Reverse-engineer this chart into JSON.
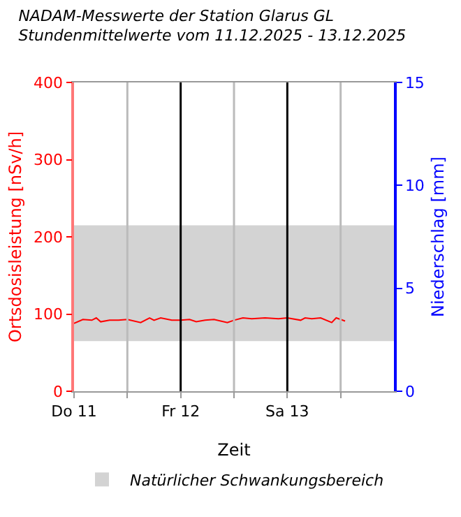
{
  "chart_data": {
    "type": "line",
    "title": "NADAM-Messwerte der Station Glarus GL",
    "subtitle": "Stundenmittelwerte vom 11.12.2025 - 13.12.2025",
    "xlabel": "Zeit",
    "ylabel": "Ortsdosisleistung [nSv/h]",
    "y2label": "Niederschlag [mm]",
    "xlim": [
      "2025-12-11T00:00",
      "2025-12-14T00:00"
    ],
    "xticks": [
      {
        "value": "2025-12-11T00:00",
        "label": "Do 11"
      },
      {
        "value": "2025-12-11T12:00",
        "label": null
      },
      {
        "value": "2025-12-12T00:00",
        "label": "Fr 12"
      },
      {
        "value": "2025-12-12T12:00",
        "label": null
      },
      {
        "value": "2025-12-13T00:00",
        "label": "Sa 13"
      },
      {
        "value": "2025-12-13T12:00",
        "label": null
      }
    ],
    "ylim": [
      0,
      400
    ],
    "yticks": [
      0,
      100,
      200,
      300,
      400
    ],
    "y2lim": [
      0,
      15
    ],
    "y2ticks": [
      0,
      5,
      10,
      15
    ],
    "series": [
      {
        "color": "#ff0000",
        "x": [
          "2025-12-11T00:00",
          "2025-12-11T02:00",
          "2025-12-11T04:00",
          "2025-12-11T05:00",
          "2025-12-11T06:00",
          "2025-12-11T08:00",
          "2025-12-11T10:00",
          "2025-12-11T12:00",
          "2025-12-11T15:00",
          "2025-12-11T17:00",
          "2025-12-11T18:00",
          "2025-12-11T19:30",
          "2025-12-11T22:00",
          "2025-12-12T00:00",
          "2025-12-12T02:00",
          "2025-12-12T03:30",
          "2025-12-12T05:30",
          "2025-12-12T07:30",
          "2025-12-12T10:30",
          "2025-12-12T12:00",
          "2025-12-12T14:00",
          "2025-12-12T16:00",
          "2025-12-12T19:00",
          "2025-12-12T22:00",
          "2025-12-13T00:00",
          "2025-12-13T03:00",
          "2025-12-13T04:00",
          "2025-12-13T05:30",
          "2025-12-13T07:30",
          "2025-12-13T10:00",
          "2025-12-13T11:00",
          "2025-12-13T13:00"
        ],
        "values": [
          88,
          93,
          92,
          95,
          90,
          92,
          92,
          93,
          89,
          95,
          92,
          95,
          92,
          92,
          93,
          90,
          92,
          93,
          89,
          92,
          95,
          94,
          95,
          94,
          95,
          92,
          95,
          94,
          95,
          89,
          95,
          91
        ]
      }
    ],
    "bands": [
      {
        "axis": "y",
        "from": 65,
        "to": 215,
        "label": "Natürlicher Schwankungsbereich",
        "color": "#d3d3d3"
      }
    ],
    "ref_lines": [
      {
        "axis": "x",
        "value": "2025-12-11T12:00",
        "color": "#bbbbbb"
      },
      {
        "axis": "x",
        "value": "2025-12-12T00:00",
        "color": "#000000"
      },
      {
        "axis": "x",
        "value": "2025-12-12T12:00",
        "color": "#bbbbbb"
      },
      {
        "axis": "x",
        "value": "2025-12-13T00:00",
        "color": "#000000"
      },
      {
        "axis": "x",
        "value": "2025-12-13T12:00",
        "color": "#bbbbbb"
      }
    ],
    "legend": "bottom",
    "line_style": "solid",
    "marker": "none"
  }
}
